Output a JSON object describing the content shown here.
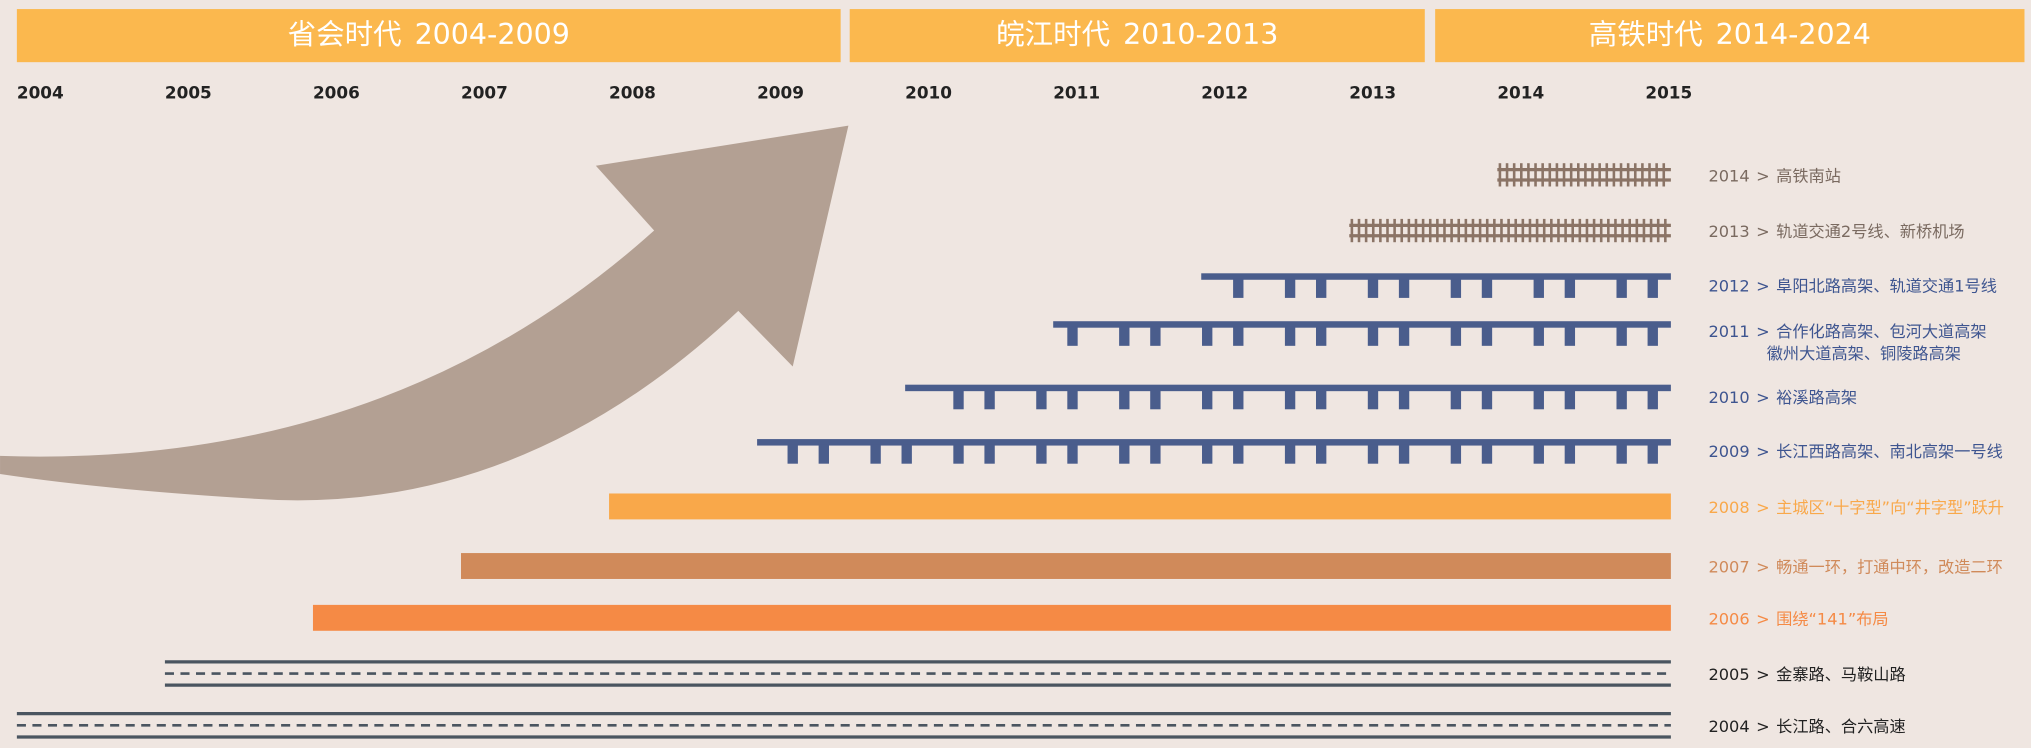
{
  "eras": [
    {
      "title": "省会时代",
      "years": "2004-2009"
    },
    {
      "title": "皖江时代",
      "years": "2010-2013"
    },
    {
      "title": "高铁时代",
      "years": "2014-2024"
    }
  ],
  "years": [
    "2004",
    "2005",
    "2006",
    "2007",
    "2008",
    "2009",
    "2010",
    "2011",
    "2012",
    "2013",
    "2014",
    "2015"
  ],
  "separator": ">",
  "items": [
    {
      "year": "2014",
      "lines": [
        "高铁南站"
      ]
    },
    {
      "year": "2013",
      "lines": [
        "轨道交通2号线、新桥机场"
      ]
    },
    {
      "year": "2012",
      "lines": [
        "阜阳北路高架、轨道交通1号线"
      ]
    },
    {
      "year": "2011",
      "lines": [
        "合作化路高架、包河大道高架",
        "徽州大道高架、铜陵路高架"
      ]
    },
    {
      "year": "2010",
      "lines": [
        "裕溪路高架"
      ]
    },
    {
      "year": "2009",
      "lines": [
        "长江西路高架、南北高架一号线"
      ]
    },
    {
      "year": "2008",
      "lines": [
        "主城区“十字型”向“井字型”跃升"
      ]
    },
    {
      "year": "2007",
      "lines": [
        "畅通一环，打通中环，改造二环"
      ]
    },
    {
      "year": "2006",
      "lines": [
        "围绕“141”布局"
      ]
    },
    {
      "year": "2005",
      "lines": [
        "金寨路、马鞍山路"
      ]
    },
    {
      "year": "2004",
      "lines": [
        "长江路、合六高速"
      ]
    }
  ]
}
